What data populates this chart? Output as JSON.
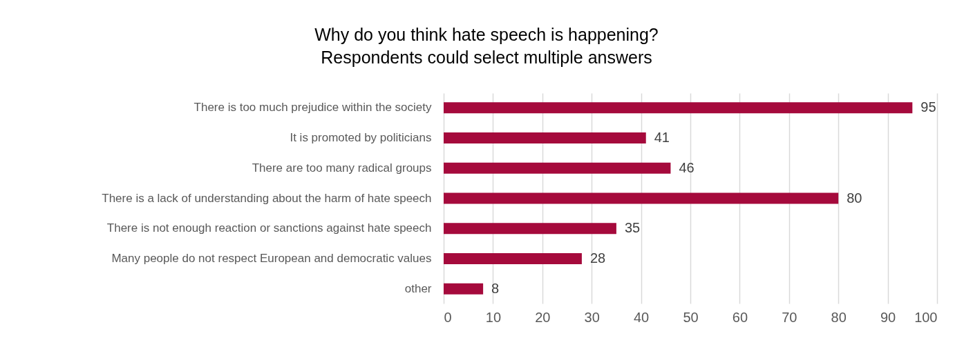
{
  "chart_data": {
    "type": "bar",
    "orientation": "horizontal",
    "title": "Why do you think hate speech is happening?",
    "subtitle": "Respondents could select multiple answers",
    "categories": [
      "There is too much prejudice within the society",
      "It is promoted by politicians",
      "There are too many radical groups",
      "There is a lack of understanding about the harm of hate speech",
      "There is not enough reaction or sanctions against hate speech",
      "Many people do not respect European and democratic values",
      "other"
    ],
    "values": [
      95,
      41,
      46,
      80,
      35,
      28,
      8
    ],
    "color": "#a50a3c",
    "xlim": [
      0,
      100
    ],
    "xticks": [
      0,
      10,
      20,
      30,
      40,
      50,
      60,
      70,
      80,
      90,
      100
    ],
    "grid": "x",
    "data_labels": true
  }
}
